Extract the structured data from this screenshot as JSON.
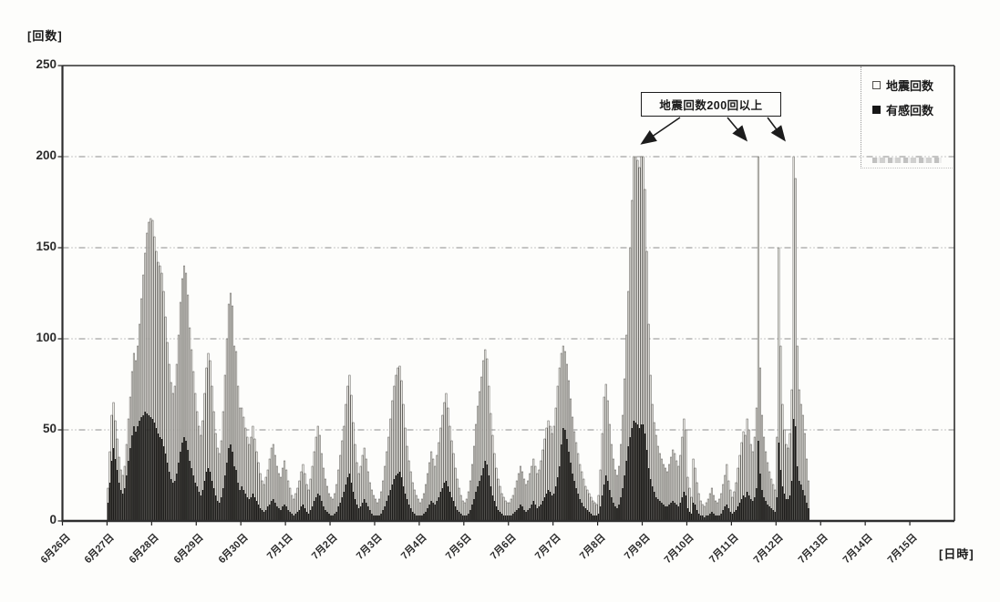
{
  "axes": {
    "y_title": "[回数]",
    "x_title": "[日時]",
    "y_ticks": [
      0,
      50,
      100,
      150,
      200,
      250
    ],
    "x_ticks": [
      "6月26日",
      "6月27日",
      "6月28日",
      "6月29日",
      "6月30日",
      "7月1日",
      "7月2日",
      "7月3日",
      "7月4日",
      "7月5日",
      "7月6日",
      "7月7日",
      "7月8日",
      "7月9日",
      "7月10日",
      "7月11日",
      "7月12日",
      "7月13日",
      "7月14日",
      "7月15日"
    ]
  },
  "legend": {
    "items": [
      {
        "label": "地震回数",
        "marker": "open-square",
        "color": "#f7f6f1"
      },
      {
        "label": "有感回数",
        "marker": "filled-square",
        "color": "#1d1c1a"
      }
    ]
  },
  "annotation": {
    "text": "地震回数200回以上",
    "arrow_count": 3
  },
  "colors": {
    "total_bar_fill": "#f7f6f1",
    "total_bar_outline": "#5e5c58",
    "felt_bar_fill": "#1d1c1a",
    "gridline": "#8d8d8d",
    "ink": "#1a1a1a"
  },
  "chart_data": {
    "type": "bar",
    "title": "",
    "ylabel": "[回数]",
    "xlabel": "[日時]",
    "ylim": [
      0,
      250
    ],
    "grid": "horizontal dash-dot lines at 50, 100, 150, 200",
    "legend_position": "top-right inside plot",
    "bar_interval": "1 hour (24 bars per day)",
    "series_note": "total=地震回数 (open bars, clipped at 200), felt=有感回数 (black bars)",
    "days": [
      {
        "date": "6月26日",
        "total": [
          0,
          0,
          0,
          0,
          0,
          0,
          0,
          0,
          0,
          0,
          0,
          0,
          0,
          0,
          0,
          0,
          0,
          0,
          0,
          0,
          0,
          0,
          0,
          0
        ],
        "felt": [
          0,
          0,
          0,
          0,
          0,
          0,
          0,
          0,
          0,
          0,
          0,
          0,
          0,
          0,
          0,
          0,
          0,
          0,
          0,
          0,
          0,
          0,
          0,
          0
        ]
      },
      {
        "date": "6月27日",
        "total": [
          18,
          38,
          58,
          65,
          55,
          45,
          35,
          28,
          25,
          30,
          42,
          56,
          68,
          82,
          92,
          88,
          96,
          108,
          122,
          135,
          147,
          158,
          164,
          166
        ],
        "felt": [
          10,
          21,
          33,
          40,
          34,
          28,
          21,
          17,
          15,
          18,
          25,
          33,
          40,
          47,
          52,
          49,
          52,
          55,
          57,
          58,
          60,
          59,
          58,
          57
        ]
      },
      {
        "date": "6月28日",
        "total": [
          165,
          156,
          148,
          142,
          140,
          136,
          126,
          112,
          98,
          86,
          76,
          70,
          74,
          86,
          102,
          120,
          133,
          140,
          136,
          124,
          106,
          94,
          82,
          70
        ],
        "felt": [
          56,
          54,
          51,
          48,
          46,
          45,
          41,
          37,
          32,
          27,
          23,
          21,
          22,
          26,
          32,
          38,
          43,
          46,
          44,
          39,
          33,
          29,
          25,
          21
        ]
      },
      {
        "date": "6月29日",
        "total": [
          60,
          52,
          47,
          55,
          70,
          84,
          92,
          88,
          74,
          60,
          48,
          40,
          37,
          44,
          60,
          80,
          100,
          119,
          125,
          118,
          96,
          93,
          74,
          62
        ],
        "felt": [
          19,
          16,
          14,
          17,
          22,
          27,
          29,
          27,
          22,
          18,
          14,
          11,
          10,
          13,
          18,
          25,
          32,
          40,
          42,
          38,
          30,
          28,
          21,
          17
        ]
      },
      {
        "date": "6月30日",
        "total": [
          62,
          57,
          51,
          46,
          42,
          46,
          52,
          45,
          38,
          32,
          26,
          22,
          20,
          24,
          28,
          34,
          40,
          42,
          36,
          30,
          26,
          24,
          29,
          33
        ],
        "felt": [
          19,
          17,
          15,
          13,
          12,
          13,
          15,
          13,
          11,
          9,
          7,
          6,
          5,
          6,
          8,
          9,
          11,
          12,
          10,
          8,
          7,
          6,
          8,
          9
        ]
      },
      {
        "date": "7月1日",
        "total": [
          28,
          22,
          18,
          14,
          12,
          15,
          18,
          22,
          27,
          31,
          26,
          20,
          17,
          23,
          30,
          38,
          46,
          52,
          47,
          37,
          29,
          23,
          19,
          15
        ],
        "felt": [
          8,
          6,
          5,
          4,
          3,
          4,
          5,
          6,
          8,
          9,
          7,
          5,
          4,
          6,
          8,
          11,
          13,
          15,
          14,
          11,
          8,
          6,
          5,
          4
        ]
      },
      {
        "date": "7月2日",
        "total": [
          13,
          12,
          15,
          20,
          28,
          36,
          44,
          52,
          64,
          74,
          80,
          69,
          54,
          42,
          32,
          26,
          30,
          36,
          40,
          34,
          27,
          21,
          17,
          14
        ],
        "felt": [
          3,
          3,
          4,
          5,
          8,
          10,
          13,
          16,
          20,
          24,
          26,
          21,
          16,
          12,
          9,
          7,
          8,
          10,
          12,
          10,
          8,
          6,
          4,
          3
        ]
      },
      {
        "date": "7月3日",
        "total": [
          12,
          10,
          12,
          16,
          22,
          30,
          38,
          46,
          56,
          66,
          74,
          80,
          84,
          85,
          77,
          64,
          51,
          41,
          33,
          27,
          21,
          17,
          14,
          12
        ],
        "felt": [
          3,
          3,
          3,
          4,
          6,
          8,
          11,
          14,
          17,
          20,
          23,
          25,
          26,
          27,
          24,
          19,
          15,
          12,
          9,
          7,
          5,
          4,
          3,
          3
        ]
      },
      {
        "date": "7月4日",
        "total": [
          10,
          12,
          15,
          20,
          26,
          32,
          38,
          34,
          30,
          36,
          43,
          51,
          58,
          65,
          70,
          62,
          52,
          44,
          37,
          29,
          23,
          18,
          14,
          11
        ],
        "felt": [
          3,
          3,
          4,
          5,
          7,
          9,
          11,
          10,
          9,
          11,
          13,
          16,
          18,
          21,
          22,
          19,
          16,
          13,
          11,
          8,
          6,
          5,
          4,
          3
        ]
      },
      {
        "date": "7月5日",
        "total": [
          10,
          12,
          16,
          22,
          31,
          41,
          53,
          63,
          71,
          79,
          88,
          94,
          89,
          74,
          59,
          47,
          37,
          29,
          23,
          19,
          15,
          13,
          11,
          10
        ],
        "felt": [
          3,
          3,
          4,
          6,
          9,
          12,
          16,
          19,
          22,
          25,
          29,
          33,
          31,
          25,
          19,
          14,
          11,
          8,
          6,
          5,
          4,
          3,
          3,
          3
        ]
      },
      {
        "date": "7月6日",
        "total": [
          10,
          12,
          14,
          18,
          22,
          26,
          30,
          27,
          23,
          20,
          22,
          26,
          30,
          34,
          30,
          26,
          28,
          33,
          39,
          45,
          51,
          55,
          52,
          48
        ],
        "felt": [
          3,
          3,
          4,
          5,
          6,
          7,
          9,
          8,
          6,
          5,
          6,
          7,
          9,
          11,
          9,
          7,
          8,
          9,
          11,
          13,
          15,
          17,
          16,
          14
        ]
      },
      {
        "date": "7月7日",
        "total": [
          52,
          62,
          74,
          84,
          92,
          96,
          93,
          86,
          77,
          67,
          57,
          49,
          43,
          37,
          31,
          27,
          23,
          19,
          17,
          15,
          13,
          11,
          10,
          9
        ],
        "felt": [
          15,
          19,
          24,
          30,
          42,
          51,
          50,
          45,
          38,
          32,
          26,
          22,
          18,
          15,
          12,
          10,
          8,
          7,
          6,
          5,
          4,
          3,
          3,
          3
        ]
      },
      {
        "date": "7月8日",
        "total": [
          14,
          28,
          48,
          68,
          75,
          66,
          53,
          42,
          34,
          28,
          25,
          30,
          42,
          58,
          78,
          102,
          126,
          150,
          176,
          200,
          200,
          198,
          194,
          200
        ],
        "felt": [
          4,
          8,
          14,
          20,
          25,
          22,
          17,
          13,
          10,
          8,
          7,
          9,
          13,
          18,
          25,
          33,
          41,
          46,
          51,
          55,
          54,
          53,
          51,
          53
        ]
      },
      {
        "date": "7月9日",
        "total": [
          200,
          182,
          148,
          108,
          80,
          64,
          54,
          47,
          41,
          37,
          34,
          31,
          29,
          27,
          31,
          35,
          39,
          37,
          33,
          30,
          36,
          46,
          56,
          50
        ],
        "felt": [
          53,
          48,
          39,
          29,
          23,
          19,
          16,
          13,
          12,
          11,
          10,
          9,
          8,
          8,
          9,
          10,
          11,
          10,
          9,
          8,
          10,
          13,
          16,
          14
        ]
      },
      {
        "date": "7月10日",
        "total": [
          24,
          18,
          13,
          34,
          29,
          21,
          15,
          11,
          9,
          8,
          10,
          12,
          15,
          18,
          14,
          11,
          10,
          12,
          15,
          20,
          25,
          31,
          22,
          17
        ],
        "felt": [
          7,
          5,
          4,
          10,
          9,
          6,
          4,
          3,
          3,
          2,
          3,
          3,
          4,
          5,
          4,
          3,
          3,
          3,
          4,
          6,
          8,
          9,
          7,
          5
        ]
      },
      {
        "date": "7月11日",
        "total": [
          13,
          16,
          21,
          29,
          36,
          43,
          49,
          47,
          56,
          50,
          42,
          38,
          46,
          62,
          200,
          84,
          58,
          46,
          38,
          32,
          27,
          23,
          20,
          17
        ],
        "felt": [
          4,
          5,
          6,
          8,
          10,
          12,
          14,
          13,
          16,
          14,
          12,
          11,
          13,
          18,
          44,
          26,
          17,
          13,
          11,
          9,
          8,
          7,
          6,
          5
        ]
      },
      {
        "date": "7月12日",
        "total": [
          46,
          150,
          96,
          64,
          50,
          42,
          40,
          48,
          72,
          200,
          188,
          96,
          72,
          64,
          58,
          48,
          34,
          22,
          0,
          0,
          0,
          0,
          0,
          0
        ],
        "felt": [
          13,
          43,
          28,
          19,
          15,
          12,
          12,
          14,
          22,
          56,
          52,
          30,
          22,
          20,
          17,
          14,
          10,
          7,
          0,
          0,
          0,
          0,
          0,
          0
        ]
      },
      {
        "date": "7月13日",
        "total": [
          0,
          0,
          0,
          0,
          0,
          0,
          0,
          0,
          0,
          0,
          0,
          0,
          0,
          0,
          0,
          0,
          0,
          0,
          0,
          0,
          0,
          0,
          0,
          0
        ],
        "felt": [
          0,
          0,
          0,
          0,
          0,
          0,
          0,
          0,
          0,
          0,
          0,
          0,
          0,
          0,
          0,
          0,
          0,
          0,
          0,
          0,
          0,
          0,
          0,
          0
        ]
      },
      {
        "date": "7月14日",
        "total": [
          0,
          0,
          0,
          0,
          0,
          0,
          0,
          0,
          0,
          0,
          0,
          0,
          0,
          0,
          0,
          0,
          0,
          0,
          0,
          0,
          0,
          0,
          0,
          0
        ],
        "felt": [
          0,
          0,
          0,
          0,
          0,
          0,
          0,
          0,
          0,
          0,
          0,
          0,
          0,
          0,
          0,
          0,
          0,
          0,
          0,
          0,
          0,
          0,
          0,
          0
        ]
      },
      {
        "date": "7月15日",
        "total": [
          0,
          0,
          0,
          0,
          0,
          0,
          0,
          0,
          0,
          0,
          0,
          0,
          0,
          0,
          0,
          0,
          0,
          0,
          0,
          0,
          0,
          0,
          0,
          0
        ],
        "felt": [
          0,
          0,
          0,
          0,
          0,
          0,
          0,
          0,
          0,
          0,
          0,
          0,
          0,
          0,
          0,
          0,
          0,
          0,
          0,
          0,
          0,
          0,
          0,
          0
        ]
      }
    ]
  }
}
